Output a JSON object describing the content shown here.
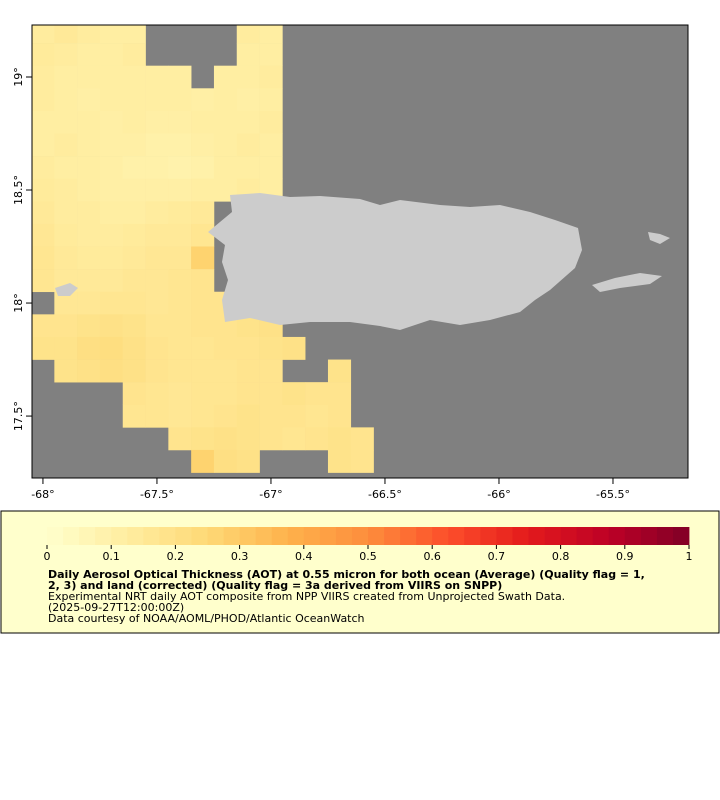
{
  "chart_data": {
    "type": "heatmap",
    "xlim": [
      -68.048,
      -65.171
    ],
    "ylim": [
      17.226,
      19.23
    ],
    "xticks": [
      {
        "value": -68,
        "label": "-68°"
      },
      {
        "value": -67.5,
        "label": "-67.5°"
      },
      {
        "value": -67,
        "label": "-67°"
      },
      {
        "value": -66.5,
        "label": "-66.5°"
      },
      {
        "value": -66,
        "label": "-66°"
      },
      {
        "value": -65.5,
        "label": "-65.5°"
      }
    ],
    "yticks": [
      {
        "value": 17.5,
        "label": "17.5°"
      },
      {
        "value": 18,
        "label": "18°"
      },
      {
        "value": 18.5,
        "label": "18.5°"
      },
      {
        "value": 19,
        "label": "19°"
      }
    ],
    "x": [
      -68.0,
      -67.9,
      -67.8,
      -67.7,
      -67.6,
      -67.5,
      -67.4,
      -67.3,
      -67.2,
      -67.1,
      -67.0,
      -66.9,
      -66.8,
      -66.7,
      -66.6
    ],
    "y": [
      19.2,
      19.1,
      19.0,
      18.9,
      18.8,
      18.7,
      18.6,
      18.5,
      18.4,
      18.3,
      18.2,
      18.1,
      18.0,
      17.9,
      17.8,
      17.7,
      17.6,
      17.5,
      17.4,
      17.3
    ],
    "values": [
      [
        0.13,
        0.15,
        0.13,
        0.12,
        0.12,
        null,
        null,
        null,
        null,
        0.13,
        0.12,
        null,
        null,
        null,
        null
      ],
      [
        0.14,
        0.13,
        0.12,
        0.12,
        0.13,
        null,
        null,
        null,
        null,
        0.12,
        0.12,
        null,
        null,
        null,
        null
      ],
      [
        0.13,
        0.12,
        0.12,
        0.12,
        0.12,
        0.12,
        0.12,
        null,
        0.12,
        0.12,
        0.13,
        null,
        null,
        null,
        null
      ],
      [
        0.13,
        0.12,
        0.11,
        0.12,
        0.12,
        0.12,
        0.12,
        0.11,
        0.12,
        0.11,
        0.12,
        null,
        null,
        null,
        null
      ],
      [
        0.12,
        0.12,
        0.12,
        0.11,
        0.12,
        0.11,
        0.11,
        0.12,
        0.12,
        0.12,
        0.13,
        null,
        null,
        null,
        null
      ],
      [
        0.12,
        0.13,
        0.12,
        0.11,
        0.11,
        0.1,
        0.1,
        0.11,
        0.12,
        0.13,
        0.12,
        null,
        null,
        null,
        null
      ],
      [
        0.13,
        0.12,
        0.12,
        0.11,
        0.1,
        0.1,
        0.09,
        0.1,
        0.12,
        0.12,
        0.12,
        null,
        null,
        null,
        null
      ],
      [
        0.14,
        0.13,
        0.12,
        0.11,
        0.11,
        0.11,
        0.11,
        0.12,
        0.12,
        0.13,
        0.12,
        null,
        null,
        null,
        null
      ],
      [
        0.15,
        0.13,
        0.13,
        0.12,
        0.12,
        0.13,
        0.14,
        0.15,
        null,
        null,
        null,
        null,
        null,
        null,
        null
      ],
      [
        0.16,
        0.14,
        0.13,
        0.13,
        0.14,
        0.15,
        0.15,
        0.17,
        null,
        null,
        null,
        null,
        null,
        null,
        null
      ],
      [
        0.17,
        0.15,
        0.14,
        0.14,
        0.15,
        0.16,
        0.16,
        0.27,
        null,
        null,
        null,
        null,
        null,
        null,
        null
      ],
      [
        0.17,
        0.15,
        0.15,
        0.15,
        0.16,
        0.16,
        0.17,
        0.18,
        null,
        null,
        null,
        null,
        null,
        null,
        null
      ],
      [
        null,
        0.16,
        0.16,
        0.17,
        0.17,
        0.16,
        0.17,
        0.18,
        0.18,
        null,
        null,
        null,
        null,
        null,
        null
      ],
      [
        0.18,
        0.18,
        0.19,
        0.2,
        0.19,
        0.17,
        0.17,
        0.18,
        0.18,
        0.19,
        0.2,
        null,
        null,
        null,
        null
      ],
      [
        0.19,
        0.19,
        0.21,
        0.22,
        0.2,
        0.18,
        0.17,
        0.17,
        0.18,
        0.18,
        0.19,
        0.2,
        null,
        null,
        null
      ],
      [
        null,
        0.19,
        0.2,
        0.21,
        0.2,
        0.18,
        0.17,
        0.17,
        0.17,
        0.18,
        0.18,
        null,
        null,
        0.19,
        null
      ],
      [
        null,
        null,
        null,
        null,
        0.18,
        0.17,
        0.16,
        0.17,
        0.17,
        0.18,
        0.18,
        0.19,
        0.18,
        0.18,
        null
      ],
      [
        null,
        null,
        null,
        null,
        0.17,
        0.17,
        0.16,
        0.17,
        0.18,
        0.19,
        0.18,
        0.18,
        0.17,
        0.18,
        null
      ],
      [
        null,
        null,
        null,
        null,
        null,
        null,
        0.18,
        0.19,
        0.2,
        0.19,
        0.18,
        0.17,
        0.18,
        0.19,
        0.18
      ],
      [
        null,
        null,
        null,
        null,
        null,
        null,
        null,
        0.27,
        0.21,
        0.2,
        null,
        null,
        null,
        0.19,
        0.18
      ]
    ],
    "colormap": [
      "#ffffcc",
      "#ffeda0",
      "#fed976",
      "#feb24c",
      "#fd8d3c",
      "#fc4e2a",
      "#e31a1c",
      "#bd0026",
      "#800026"
    ],
    "colorbar": {
      "range": [
        0,
        1
      ],
      "ticks": [
        0,
        0.1,
        0.2,
        0.3,
        0.4,
        0.5,
        0.6,
        0.7,
        0.8,
        0.9,
        1
      ]
    },
    "title_lines": [
      "Daily Aerosol Optical Thickness (AOT) at 0.55 micron for both ocean (Average) (Quality flag = 1,",
      "2, 3) and land (corrected) (Quality flag = 3a derived from VIIRS on SNPP)"
    ],
    "notes": [
      "Experimental NRT daily AOT composite from NPP VIIRS created from Unprojected Swath Data.",
      "(2025-09-27T12:00:00Z)",
      "Data courtesy of NOAA/AOML/PHOD/Atlantic OceanWatch"
    ]
  }
}
